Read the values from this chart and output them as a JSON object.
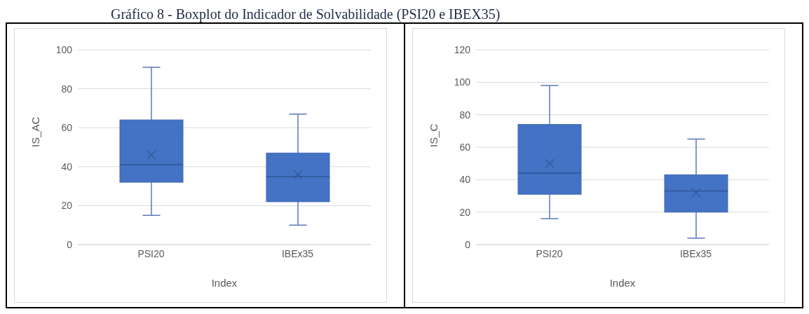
{
  "chart_data": [
    {
      "type": "box",
      "title": "Gráfico 8 - Boxplot do Indicador de Solvabilidade (PSI20 e IBEX35)",
      "categories": [
        "PSI20",
        "IBEx35"
      ],
      "xlabel": "Index",
      "ylabel": "IS_AC",
      "color": "#4472c4",
      "ylim": [
        0,
        100
      ],
      "yticks": [
        0,
        20,
        40,
        60,
        80,
        100
      ],
      "grid": "y",
      "legend": false,
      "boxes": [
        {
          "low": 15,
          "q1": 32,
          "median": 41,
          "q3": 64,
          "high": 91,
          "mean": 46
        },
        {
          "low": 10,
          "q1": 22,
          "median": 35,
          "q3": 47,
          "high": 67,
          "mean": 36
        }
      ]
    },
    {
      "type": "box",
      "categories": [
        "PSI20",
        "IBEx35"
      ],
      "xlabel": "Index",
      "ylabel": "IS_C",
      "color": "#4472c4",
      "ylim": [
        0,
        120
      ],
      "yticks": [
        0,
        20,
        40,
        60,
        80,
        100,
        120
      ],
      "grid": "y",
      "legend": false,
      "boxes": [
        {
          "low": 16,
          "q1": 31,
          "median": 44,
          "q3": 74,
          "high": 98,
          "mean": 50
        },
        {
          "low": 4,
          "q1": 20,
          "median": 33,
          "q3": 43,
          "high": 65,
          "mean": 32
        }
      ]
    }
  ]
}
